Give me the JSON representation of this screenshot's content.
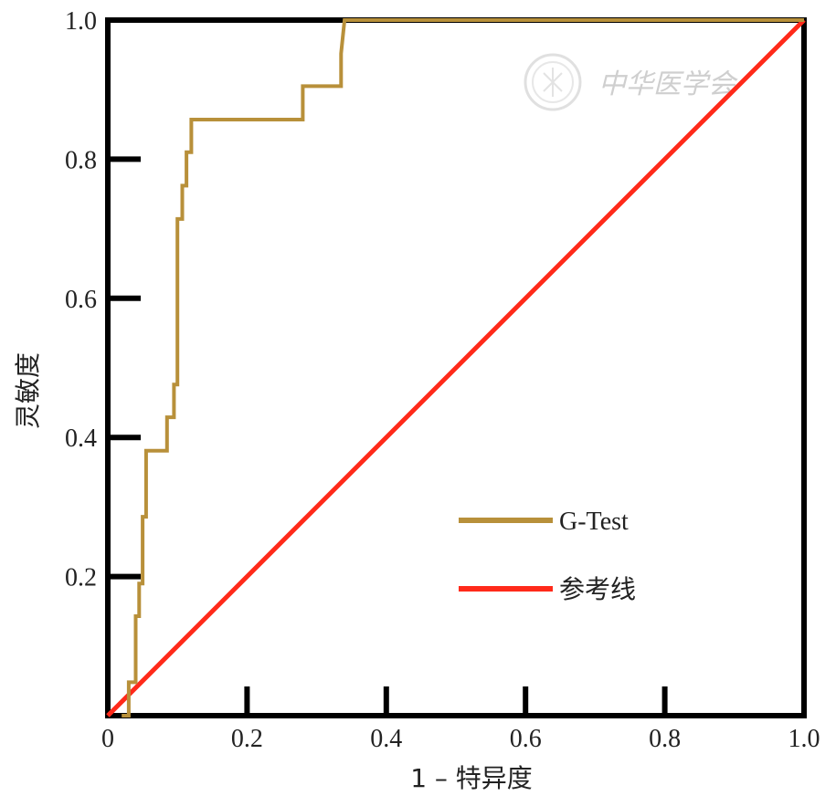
{
  "chart_data": {
    "type": "line",
    "title": "",
    "xlabel": "1 – 特异度",
    "ylabel": "灵敏度",
    "xlim": [
      0,
      1
    ],
    "ylim": [
      0,
      1
    ],
    "x_ticks": [
      "0",
      "0.2",
      "0.4",
      "0.6",
      "0.8",
      "1.0"
    ],
    "y_ticks": [
      "0.2",
      "0.4",
      "0.6",
      "0.8",
      "1.0"
    ],
    "grid": false,
    "legend_position": "center-right",
    "series": [
      {
        "name": "G-Test",
        "color": "#b8903a",
        "points": [
          [
            0.02,
            0.0
          ],
          [
            0.03,
            0.0
          ],
          [
            0.03,
            0.048
          ],
          [
            0.04,
            0.048
          ],
          [
            0.04,
            0.143
          ],
          [
            0.045,
            0.143
          ],
          [
            0.045,
            0.19
          ],
          [
            0.05,
            0.19
          ],
          [
            0.05,
            0.286
          ],
          [
            0.055,
            0.286
          ],
          [
            0.055,
            0.381
          ],
          [
            0.085,
            0.381
          ],
          [
            0.085,
            0.429
          ],
          [
            0.095,
            0.429
          ],
          [
            0.095,
            0.476
          ],
          [
            0.1,
            0.476
          ],
          [
            0.1,
            0.714
          ],
          [
            0.107,
            0.714
          ],
          [
            0.107,
            0.762
          ],
          [
            0.113,
            0.762
          ],
          [
            0.113,
            0.81
          ],
          [
            0.12,
            0.81
          ],
          [
            0.12,
            0.857
          ],
          [
            0.28,
            0.857
          ],
          [
            0.28,
            0.905
          ],
          [
            0.335,
            0.905
          ],
          [
            0.335,
            0.952
          ],
          [
            0.34,
            1.0
          ],
          [
            1.0,
            1.0
          ]
        ]
      },
      {
        "name": "参考线",
        "color": "#ff2a1a",
        "points": [
          [
            0,
            0
          ],
          [
            1,
            1
          ]
        ]
      }
    ],
    "legend": {
      "items": [
        {
          "label": "G-Test",
          "color": "#b8903a"
        },
        {
          "label": "参考线",
          "color": "#ff2a1a"
        }
      ]
    }
  },
  "watermark": {
    "text": "中华医学会"
  }
}
